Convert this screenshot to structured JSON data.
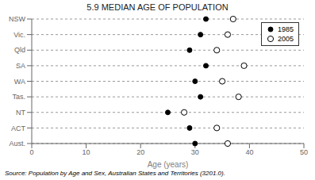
{
  "chart_data": {
    "type": "dot",
    "title": "5.9   MEDIAN AGE OF POPULATION",
    "categories": [
      "NSW",
      "Vic.",
      "Qld",
      "SA",
      "WA",
      "Tas.",
      "NT",
      "ACT",
      "Aust."
    ],
    "series": [
      {
        "name": "1985",
        "color": "#000000",
        "marker": "filled",
        "values": [
          32,
          31,
          29,
          32,
          30,
          31,
          25,
          29,
          30
        ]
      },
      {
        "name": "2005",
        "color": "#000000",
        "marker": "open",
        "values": [
          37,
          36,
          34,
          39,
          35,
          38,
          28,
          34,
          36
        ]
      }
    ],
    "xlabel": "Age (years)",
    "xlim": [
      0,
      50
    ],
    "xticks": [
      0,
      10,
      20,
      30,
      40,
      50
    ],
    "orientation": "horizontal",
    "grid": true,
    "legend": "upper right",
    "annotations": [
      "Source: Population by Age and Sex, Australian States and Territories (3201.0)."
    ]
  }
}
